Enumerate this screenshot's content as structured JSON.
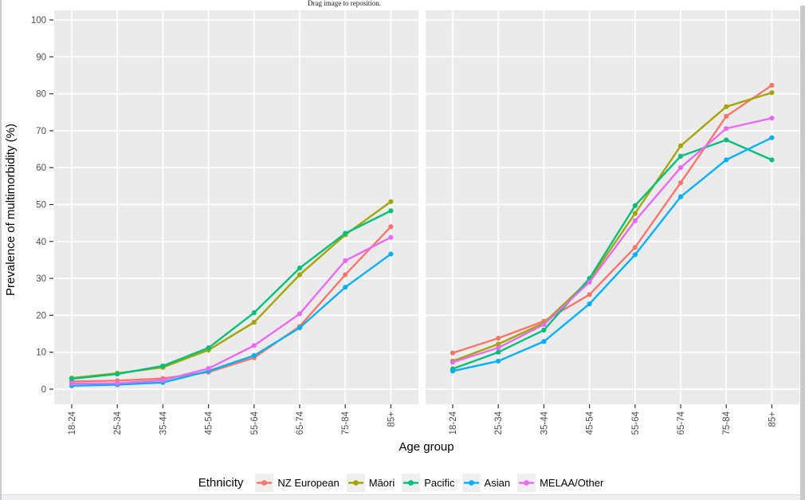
{
  "page": {
    "top_hint": "Drag image to reposition.",
    "panel_background": "#ebebeb",
    "gridline_color": "#ffffff",
    "axis_text_color": "#4d4d4d",
    "legend_key_background": "#efefef",
    "scrollbar_color": "#c7c9cb",
    "footer_strip_color": "#edeff3"
  },
  "chart_data": {
    "type": "line",
    "title": "",
    "xlabel": "Age group",
    "ylabel": "Prevalence of multimorbidity (%)",
    "categories": [
      "18-24",
      "25-34",
      "35-44",
      "45-54",
      "55-64",
      "65-74",
      "75-84",
      "85+"
    ],
    "ylim": [
      0,
      100
    ],
    "yticks": [
      0,
      10,
      20,
      30,
      40,
      50,
      60,
      70,
      80,
      90,
      100
    ],
    "grid": true,
    "legend_position": "bottom",
    "legend_title": "Ethnicity",
    "legend": [
      {
        "label": "NZ European",
        "color": "#F8766D"
      },
      {
        "label": "Māori",
        "color": "#A3A500"
      },
      {
        "label": "Pacific",
        "color": "#00BF7D"
      },
      {
        "label": "Asian",
        "color": "#00B0F6"
      },
      {
        "label": "MELAA/Other",
        "color": "#E76BF3"
      }
    ],
    "panels": [
      {
        "name": "facet-left",
        "series": [
          {
            "name": "NZ European",
            "values": [
              2.1,
              2.3,
              2.9,
              4.6,
              8.5,
              17.0,
              31.0,
              44.0
            ]
          },
          {
            "name": "Māori",
            "values": [
              3.0,
              4.3,
              5.9,
              10.6,
              18.1,
              31.0,
              41.8,
              50.8
            ]
          },
          {
            "name": "Pacific",
            "values": [
              2.8,
              4.1,
              6.3,
              11.2,
              20.7,
              32.8,
              42.2,
              48.3
            ]
          },
          {
            "name": "Asian",
            "values": [
              0.9,
              1.2,
              1.8,
              4.9,
              9.1,
              16.6,
              27.6,
              36.6
            ]
          },
          {
            "name": "MELAA/Other",
            "values": [
              1.5,
              1.6,
              2.4,
              5.6,
              11.8,
              20.4,
              34.8,
              41.1
            ]
          }
        ]
      },
      {
        "name": "facet-right",
        "series": [
          {
            "name": "NZ European",
            "values": [
              9.8,
              13.8,
              18.4,
              25.6,
              38.4,
              55.9,
              73.9,
              82.3
            ]
          },
          {
            "name": "Māori",
            "values": [
              7.6,
              12.2,
              17.9,
              29.6,
              47.6,
              65.9,
              76.5,
              80.3
            ]
          },
          {
            "name": "Pacific",
            "values": [
              5.5,
              10.0,
              16.0,
              30.0,
              49.7,
              63.1,
              67.5,
              62.1
            ]
          },
          {
            "name": "Asian",
            "values": [
              4.9,
              7.6,
              12.9,
              23.1,
              36.4,
              52.1,
              62.1,
              68.1
            ]
          },
          {
            "name": "MELAA/Other",
            "values": [
              7.3,
              11.2,
              17.5,
              29.0,
              45.6,
              60.0,
              70.6,
              73.4
            ]
          }
        ]
      }
    ]
  }
}
